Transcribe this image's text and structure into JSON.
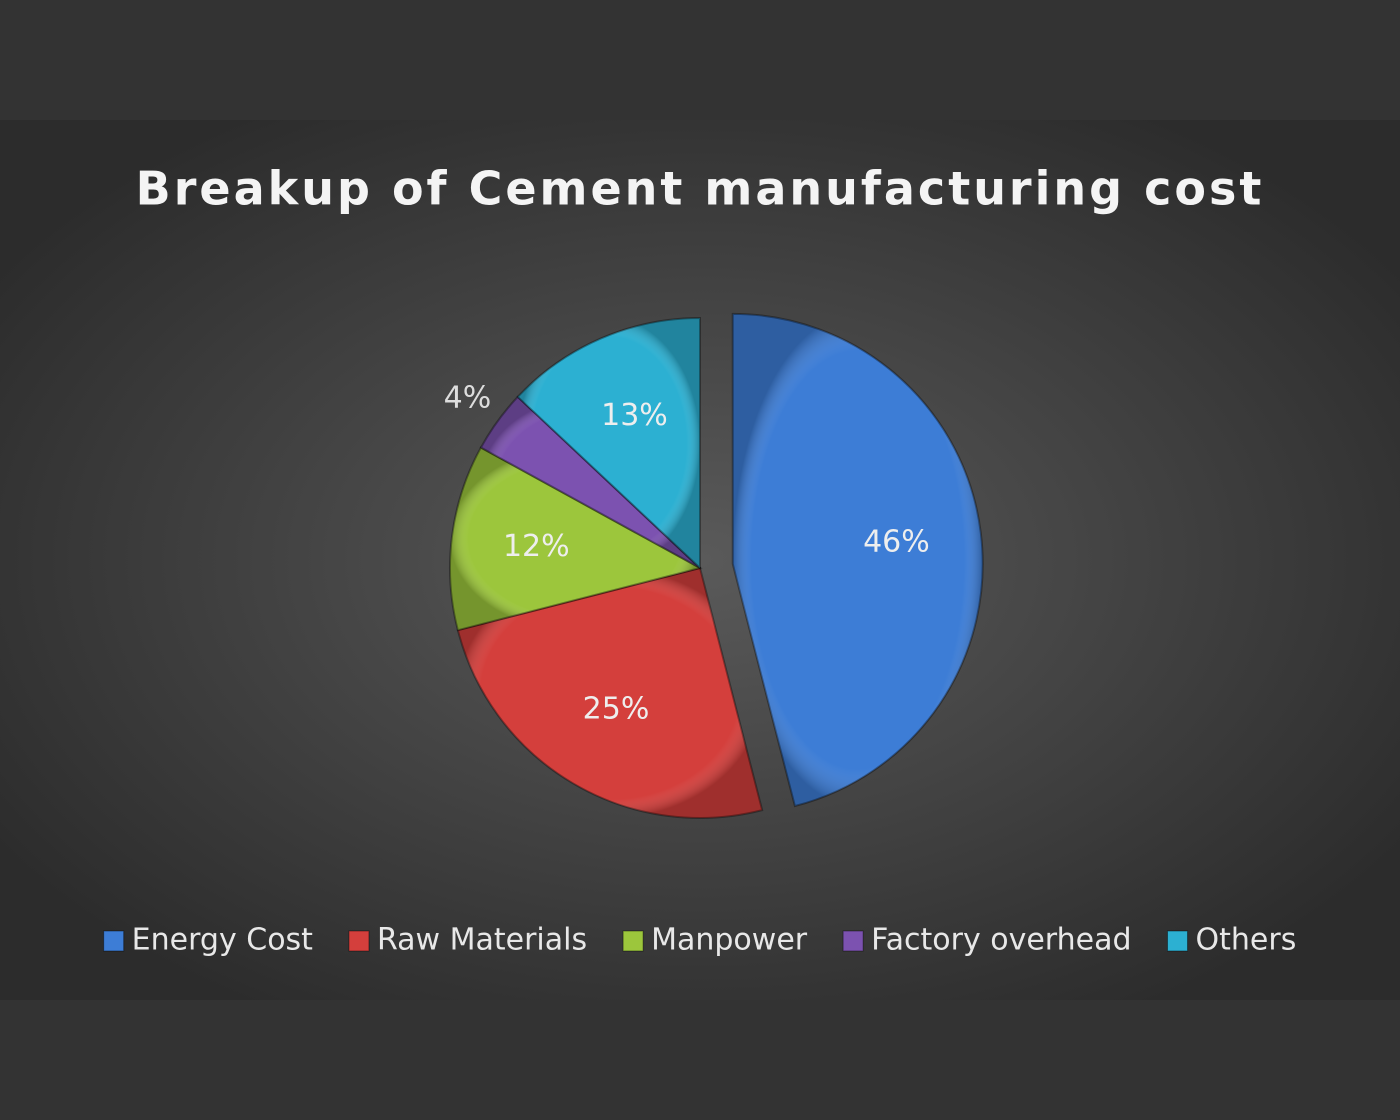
{
  "chart_data": {
    "type": "pie",
    "title": "Breakup of Cement manufacturing cost",
    "categories": [
      "Energy Cost",
      "Raw Materials",
      "Manpower",
      "Factory overhead",
      "Others"
    ],
    "values": [
      46,
      25,
      12,
      4,
      13
    ],
    "value_labels": [
      "46%",
      "25%",
      "12%",
      "4%",
      "13%"
    ],
    "colors": [
      "#3d7dd6",
      "#d43f3c",
      "#9cc63c",
      "#7c52b0",
      "#2cb0d2"
    ],
    "exploded": [
      0
    ]
  }
}
